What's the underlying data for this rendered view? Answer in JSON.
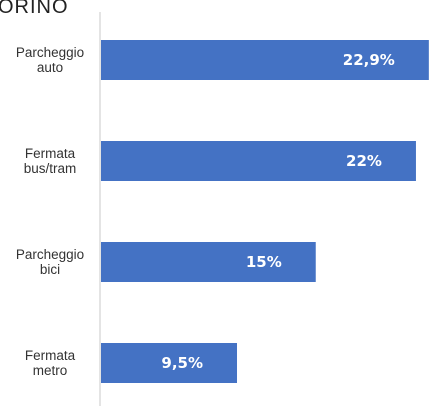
{
  "chart_data": {
    "type": "bar",
    "orientation": "horizontal",
    "title_fragment": "ORINO",
    "categories": [
      [
        "Parcheggio",
        "auto"
      ],
      [
        "Fermata",
        "bus/tram"
      ],
      [
        "Parcheggio",
        "bici"
      ],
      [
        "Fermata",
        "metro"
      ]
    ],
    "values": [
      22.9,
      22,
      15,
      9.5
    ],
    "value_labels": [
      "22,9%",
      "22%",
      "15%",
      "9,5%"
    ],
    "xlim": [
      0,
      23.4
    ],
    "grid": false,
    "legend": "none",
    "bar_color": "#4472c4",
    "label_color": "#ffffff"
  }
}
